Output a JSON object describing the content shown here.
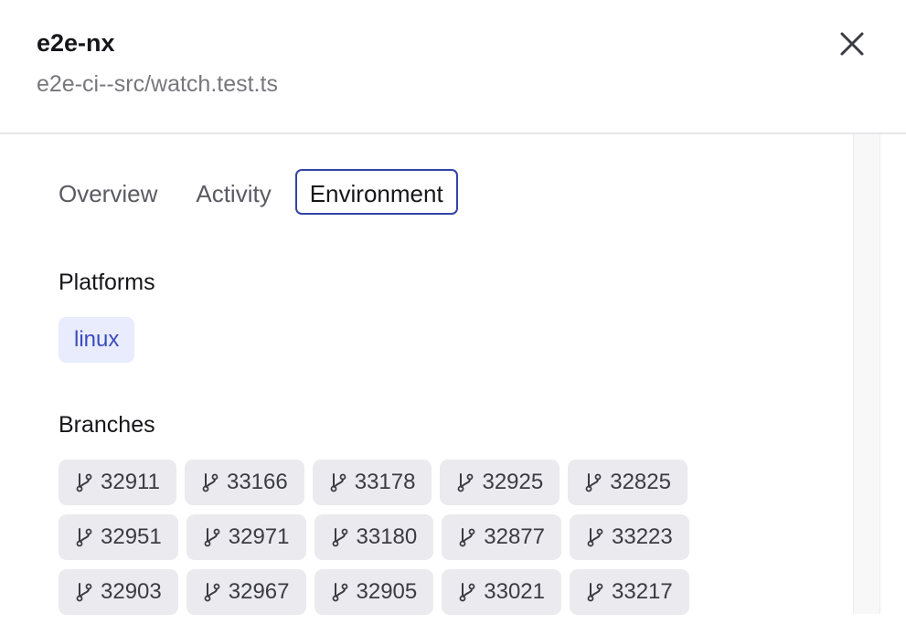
{
  "header": {
    "title": "e2e-nx",
    "subtitle": "e2e-ci--src/watch.test.ts",
    "close_icon": "close-icon"
  },
  "tabs": [
    {
      "label": "Overview",
      "active": false
    },
    {
      "label": "Activity",
      "active": false
    },
    {
      "label": "Environment",
      "active": true
    }
  ],
  "platforms": {
    "heading": "Platforms",
    "items": [
      "linux"
    ]
  },
  "branches": {
    "heading": "Branches",
    "icon": "git-branch-icon",
    "rows": [
      [
        "32911",
        "33166",
        "33178",
        "32925",
        "32825"
      ],
      [
        "32951",
        "32971",
        "33180",
        "32877",
        "33223"
      ],
      [
        "32903",
        "32967",
        "32905",
        "33021",
        "33217"
      ]
    ]
  },
  "colors": {
    "accent": "#3343a8",
    "platform_chip_bg": "#e9ecfd",
    "platform_chip_text": "#3a4bbd",
    "branch_chip_bg": "#ebeaee"
  }
}
